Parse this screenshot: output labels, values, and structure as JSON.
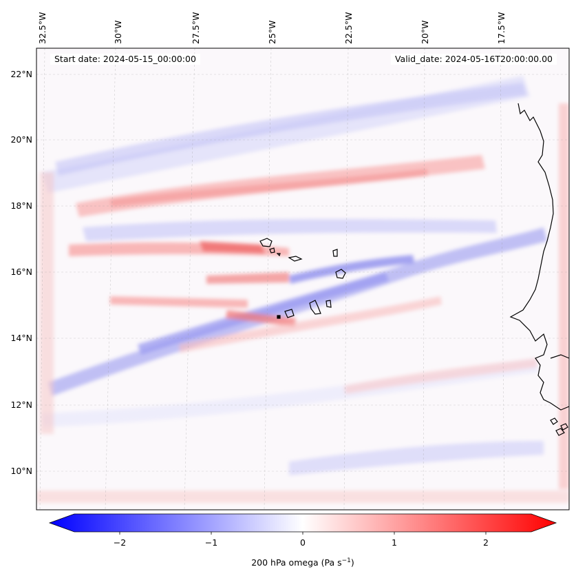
{
  "map": {
    "start_label": "Start date: 2024-05-15_00:00:00",
    "valid_label": "Valid_date: 2024-05-16T20:00:00.00",
    "lon_ticks": [
      "32.5°W",
      "30°W",
      "27.5°W",
      "25°W",
      "22.5°W",
      "20°W",
      "17.5°W"
    ],
    "lat_ticks": [
      "22°N",
      "20°N",
      "18°N",
      "16°N",
      "14°N",
      "12°N",
      "10°N"
    ],
    "colorbar": {
      "ticks": [
        "−2",
        "−1",
        "0",
        "1",
        "2"
      ],
      "label": "200 hPa omega (Pa s",
      "label_sup": "−1",
      "label_end": ")",
      "min_color": "#0000ff",
      "mid_color": "#ffffff",
      "max_color": "#ff0000"
    }
  }
}
